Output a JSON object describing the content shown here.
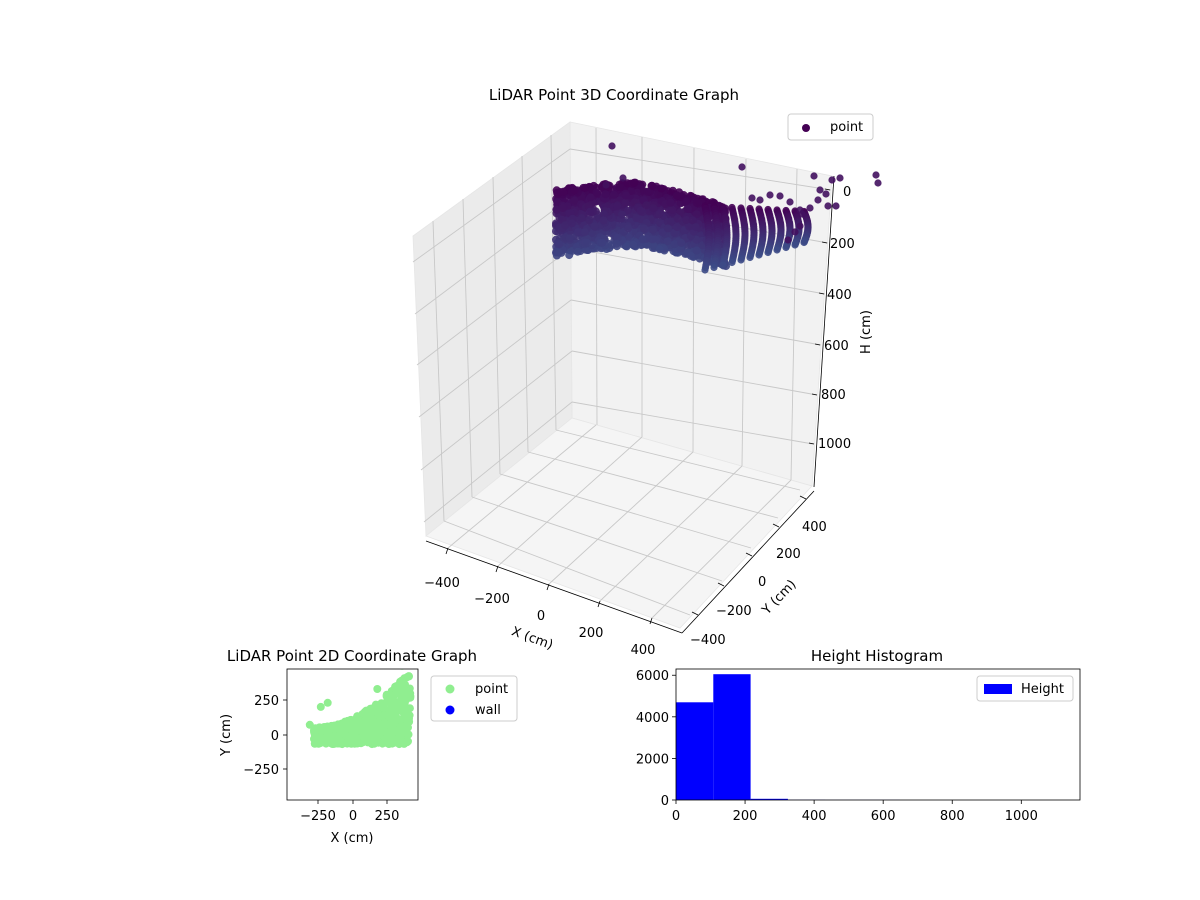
{
  "figure": {
    "colors": {
      "viridis_dark": "#440154",
      "viridis_mid": "#3b528b",
      "point_green": "#90ee90",
      "wall_blue": "#0000ff",
      "hist_blue": "#0000ff"
    }
  },
  "chart_data": [
    {
      "type": "scatter3d",
      "title": "LiDAR Point 3D Coordinate Graph",
      "xlabel": "X (cm)",
      "ylabel": "Y (cm)",
      "zlabel": "H (cm)",
      "x_ticks": [
        "−400",
        "−200",
        "0",
        "200",
        "400"
      ],
      "y_ticks": [
        "400",
        "200",
        "0",
        "−200",
        "−400"
      ],
      "z_ticks": [
        "0",
        "200",
        "400",
        "600",
        "800",
        "1000"
      ],
      "xlim": [
        -450,
        450
      ],
      "ylim": [
        -450,
        450
      ],
      "zlim": [
        0,
        1100
      ],
      "z_inverted": true,
      "colormap": "viridis",
      "grid": true,
      "legend": {
        "placement": "top-right",
        "entries": [
          "point"
        ]
      },
      "series": [
        {
          "name": "point",
          "description_points": "dense ring of points, x about −400..450, y about −200..450, h about 0..200"
        }
      ]
    },
    {
      "type": "scatter",
      "title": "LiDAR Point 2D Coordinate Graph",
      "xlabel": "X (cm)",
      "ylabel": "Y (cm)",
      "x_ticks": [
        "−250",
        "0",
        "250"
      ],
      "y_ticks": [
        "250",
        "0",
        "−250"
      ],
      "xlim": [
        -475,
        475
      ],
      "ylim": [
        -475,
        475
      ],
      "legend": {
        "placement": "outside-right",
        "entries": [
          "point",
          "wall"
        ]
      },
      "series": [
        {
          "name": "point",
          "color": "#90ee90"
        },
        {
          "name": "wall",
          "color": "#0000ff",
          "values": []
        }
      ]
    },
    {
      "type": "bar",
      "title": "Height Histogram",
      "xlabel": "",
      "ylabel": "",
      "x_ticks": [
        "0",
        "200",
        "400",
        "600",
        "800",
        "1000"
      ],
      "y_ticks": [
        "0",
        "2000",
        "4000",
        "6000"
      ],
      "xlim": [
        0,
        1170
      ],
      "ylim": [
        0,
        6300
      ],
      "legend": {
        "placement": "top-right",
        "entries": [
          "Height"
        ]
      },
      "bins": [
        {
          "x0": 0,
          "x1": 108,
          "count": 4700
        },
        {
          "x0": 108,
          "x1": 216,
          "count": 6050
        },
        {
          "x0": 216,
          "x1": 324,
          "count": 60
        },
        {
          "x0": 324,
          "x1": 432,
          "count": 8
        },
        {
          "x0": 432,
          "x1": 540,
          "count": 4
        },
        {
          "x0": 540,
          "x1": 648,
          "count": 3
        },
        {
          "x0": 648,
          "x1": 756,
          "count": 2
        },
        {
          "x0": 756,
          "x1": 864,
          "count": 2
        },
        {
          "x0": 864,
          "x1": 972,
          "count": 1
        },
        {
          "x0": 972,
          "x1": 1080,
          "count": 1
        }
      ],
      "series": [
        {
          "name": "Height",
          "color": "#0000ff"
        }
      ]
    }
  ]
}
